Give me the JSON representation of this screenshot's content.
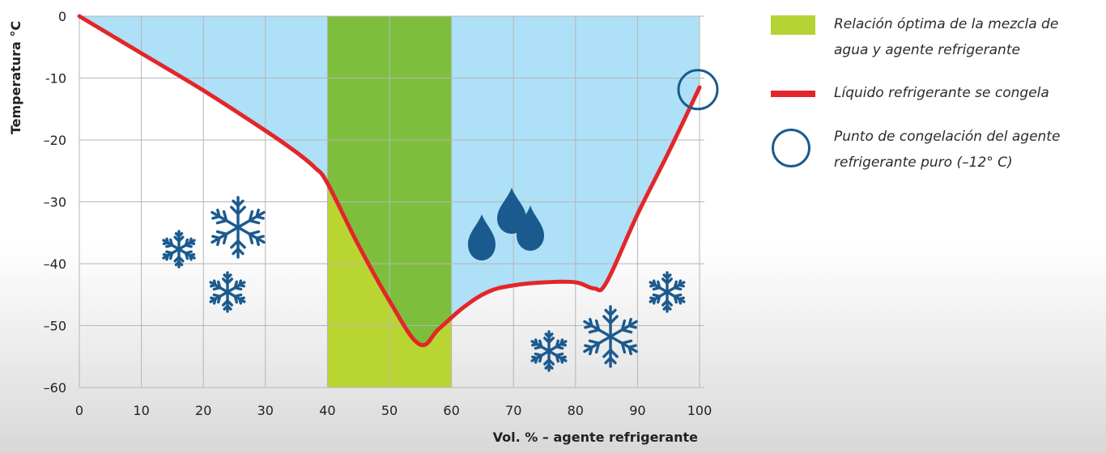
{
  "chart_data": {
    "type": "line",
    "xlabel": "Vol. % – agente refrigerante",
    "ylabel": "Temperatura °C",
    "xlim": [
      0,
      100
    ],
    "ylim": [
      -60,
      0
    ],
    "x_ticks": [
      0,
      10,
      20,
      30,
      40,
      50,
      60,
      70,
      80,
      90,
      100
    ],
    "x_tick_labels": [
      "0",
      "10",
      "20",
      "30",
      "40",
      "50",
      "60",
      "70",
      "80",
      "90",
      "100"
    ],
    "y_ticks": [
      0,
      -10,
      -20,
      -30,
      -40,
      -50,
      -60
    ],
    "y_tick_labels": [
      "0",
      "-10",
      "–20",
      "–30",
      "–40",
      "–50",
      "–60"
    ],
    "grid": true,
    "optimal_range": {
      "x": [
        40,
        60
      ]
    },
    "series": [
      {
        "name": "Líquido refrigerante se congela",
        "color": "#e3262a",
        "points": [
          [
            0,
            0
          ],
          [
            10,
            -6
          ],
          [
            20,
            -12
          ],
          [
            30,
            -18.5
          ],
          [
            35,
            -22
          ],
          [
            38,
            -24.5
          ],
          [
            40,
            -27
          ],
          [
            45,
            -37
          ],
          [
            50,
            -46
          ],
          [
            54.8,
            -53
          ],
          [
            58,
            -50.5
          ],
          [
            62,
            -47
          ],
          [
            66,
            -44.5
          ],
          [
            70,
            -43.5
          ],
          [
            75,
            -43
          ],
          [
            80,
            -43
          ],
          [
            83,
            -44
          ],
          [
            85,
            -43
          ],
          [
            90,
            -32
          ],
          [
            95,
            -22
          ],
          [
            100,
            -11.5
          ]
        ]
      }
    ],
    "highlight_point": {
      "x": 100,
      "y": -12
    },
    "colors": {
      "liquid": "#aee0f7",
      "optimal_upper": "#7dbf3d",
      "optimal_lower": "#b9d532",
      "line": "#e3262a",
      "snow": "#1b5a8f",
      "grid": "#b5b5b5"
    }
  },
  "icons": [
    "snowflake-icon",
    "drops-icon"
  ],
  "legend": [
    {
      "type": "green-rect",
      "color": "#b5d335",
      "line1": "Relación óptima de la mezcla de",
      "line2": "agua y agente refrigerante"
    },
    {
      "type": "red-line",
      "color": "#e3262a",
      "line1": "Líquido refrigerante se congela"
    },
    {
      "type": "blue-circle",
      "color": "#1b5a8f",
      "line1": "Punto de congelación del agente",
      "line2": "refrigerante puro (–12° C)"
    }
  ]
}
